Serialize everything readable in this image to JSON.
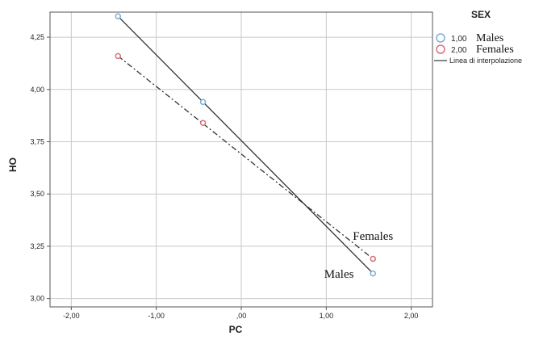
{
  "chart_data": {
    "type": "scatter",
    "title": "",
    "xlabel": "PC",
    "ylabel": "HO",
    "xlim": [
      -2.25,
      2.25
    ],
    "ylim": [
      2.96,
      4.37
    ],
    "grid": true,
    "x_ticks": [
      -2,
      -1,
      0,
      1,
      2
    ],
    "x_tick_labels": [
      "-2,00",
      "-1,00",
      ",00",
      "1,00",
      "2,00"
    ],
    "y_ticks": [
      3.0,
      3.25,
      3.5,
      3.75,
      4.0,
      4.25
    ],
    "y_tick_labels": [
      "3,00",
      "3,25",
      "3,50",
      "3,75",
      "4,00",
      "4,25"
    ],
    "legend": {
      "title": "SEX",
      "placement": "top-right",
      "entries": [
        {
          "code": "1,00",
          "name": "Males",
          "color": "#7bafd4",
          "marker": "circle"
        },
        {
          "code": "2,00",
          "name": "Females",
          "color": "#d9707a",
          "marker": "circle"
        },
        {
          "label": "Linea di interpolazione",
          "color": "#333333",
          "marker": "line"
        }
      ]
    },
    "series": [
      {
        "name": "Males",
        "color": "#7bafd4",
        "line_style": "solid",
        "points": [
          [
            -1.45,
            4.35
          ],
          [
            -0.45,
            3.94
          ],
          [
            1.55,
            3.12
          ]
        ],
        "fit": [
          [
            -1.45,
            4.35
          ],
          [
            1.55,
            3.12
          ]
        ]
      },
      {
        "name": "Females",
        "color": "#d9707a",
        "line_style": "dash-dot",
        "points": [
          [
            -1.45,
            4.16
          ],
          [
            -0.45,
            3.84
          ],
          [
            1.55,
            3.19
          ]
        ],
        "fit": [
          [
            -1.45,
            4.16
          ],
          [
            1.55,
            3.19
          ]
        ]
      }
    ],
    "annotations": [
      {
        "text": "Females",
        "x": 1.55,
        "y": 3.28
      },
      {
        "text": "Males",
        "x": 1.15,
        "y": 3.1
      }
    ]
  }
}
